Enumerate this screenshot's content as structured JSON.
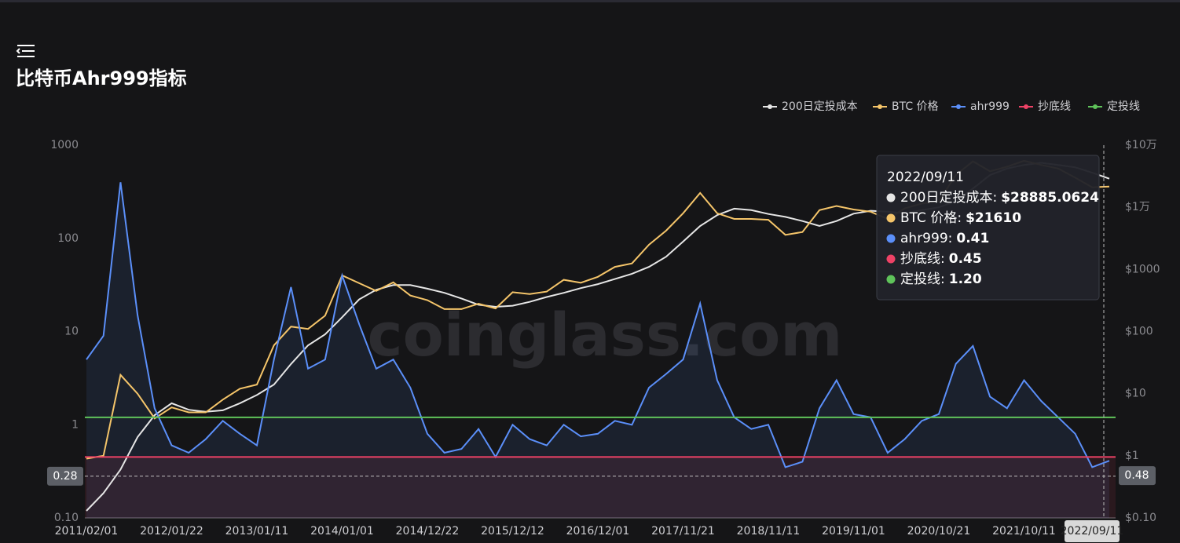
{
  "header": {
    "title": "比特币Ahr999指标"
  },
  "chart_data": {
    "type": "line",
    "watermark": "coinglass.com",
    "categories": [
      "2011/02/01",
      null,
      null,
      null,
      null,
      "2012/01/22",
      null,
      null,
      null,
      null,
      "2013/01/11",
      null,
      null,
      null,
      null,
      "2014/01/01",
      null,
      null,
      null,
      null,
      "2014/12/22",
      null,
      null,
      null,
      null,
      "2015/12/12",
      null,
      null,
      null,
      null,
      "2016/12/01",
      null,
      null,
      null,
      null,
      "2017/11/21",
      null,
      null,
      null,
      null,
      "2018/11/11",
      null,
      null,
      null,
      null,
      "2019/11/01",
      null,
      null,
      null,
      null,
      "2020/10/21",
      null,
      null,
      null,
      null,
      "2021/10/11",
      null,
      null,
      null,
      null,
      "2022/09/11"
    ],
    "series": [
      {
        "name": "200日定投成本",
        "color": "#e6e6e6",
        "axis": "y2",
        "values": [
          0.13,
          0.25,
          0.6,
          2,
          4.5,
          7,
          5.5,
          5.1,
          5.4,
          7,
          9.5,
          14,
          30,
          60,
          90,
          170,
          330,
          470,
          560,
          560,
          490,
          420,
          340,
          270,
          250,
          260,
          300,
          360,
          420,
          500,
          580,
          700,
          850,
          1100,
          1600,
          2800,
          5000,
          7500,
          9500,
          9000,
          7800,
          7000,
          6000,
          5000,
          6000,
          7900,
          8800,
          8500,
          8000,
          9000,
          10000,
          12500,
          20000,
          33000,
          42000,
          48000,
          52000,
          48000,
          44000,
          36000,
          28885.0624
        ]
      },
      {
        "name": "BTC 价格",
        "color": "#f5c56a",
        "axis": "y2",
        "values": [
          0.9,
          1,
          20,
          10,
          4,
          6,
          5,
          5,
          8,
          12,
          14,
          60,
          120,
          110,
          180,
          800,
          600,
          450,
          620,
          380,
          320,
          230,
          230,
          280,
          235,
          430,
          400,
          440,
          680,
          610,
          760,
          1100,
          1250,
          2500,
          4200,
          8000,
          17000,
          8000,
          6500,
          6500,
          6300,
          3600,
          4000,
          9000,
          10500,
          9200,
          8500,
          6500,
          9600,
          11500,
          12500,
          33000,
          55000,
          38000,
          45000,
          56000,
          48000,
          42000,
          30000,
          21000,
          21610
        ]
      },
      {
        "name": "ahr999",
        "color": "#5b8ff9",
        "axis": "y",
        "values": [
          5,
          9,
          400,
          15,
          1.5,
          0.6,
          0.5,
          0.7,
          1.1,
          0.8,
          0.6,
          5,
          30,
          4,
          5,
          40,
          12,
          4,
          5,
          2.5,
          0.8,
          0.5,
          0.55,
          0.9,
          0.45,
          1.0,
          0.7,
          0.6,
          1.0,
          0.75,
          0.8,
          1.1,
          1.0,
          2.5,
          3.5,
          5,
          20,
          3,
          1.2,
          0.9,
          1.0,
          0.35,
          0.4,
          1.5,
          3.0,
          1.3,
          1.2,
          0.5,
          0.7,
          1.1,
          1.3,
          4.5,
          7,
          2,
          1.5,
          3.0,
          1.8,
          1.2,
          0.8,
          0.35,
          0.41
        ]
      },
      {
        "name": "抄底线",
        "color": "#ee4266",
        "axis": "y",
        "level": 0.45
      },
      {
        "name": "定投线",
        "color": "#5fc35a",
        "axis": "y",
        "level": 1.2
      }
    ],
    "log_scale": true,
    "ylim": [
      0.1,
      1000
    ],
    "yticks": [
      {
        "value": 0.1,
        "label": "0.10"
      },
      1,
      10,
      100,
      1000
    ],
    "y2lim": [
      0.1,
      100000
    ],
    "y2ticks": [
      {
        "value": 0.1,
        "label": "$0.10"
      },
      {
        "value": 1,
        "label": "$1"
      },
      {
        "value": 10,
        "label": "$10"
      },
      {
        "value": 100,
        "label": "$100"
      },
      {
        "value": 1000,
        "label": "$1000"
      },
      {
        "value": 10000,
        "label": "$1万"
      },
      {
        "value": 100000,
        "label": "$10万"
      }
    ],
    "legend": "top-right",
    "axis_pointer": {
      "category": 60,
      "y": 0.28,
      "y2": 0.48
    },
    "tooltip": {
      "title": "2022/09/11",
      "rows": [
        {
          "label": "200日定投成本:",
          "value": "$28885.0624"
        },
        {
          "label": "BTC 价格:",
          "value": "$21610"
        },
        {
          "label": "ahr999:",
          "value": "0.41"
        },
        {
          "label": "抄底线:",
          "value": "0.45"
        },
        {
          "label": "定投线:",
          "value": "1.20"
        }
      ]
    }
  }
}
